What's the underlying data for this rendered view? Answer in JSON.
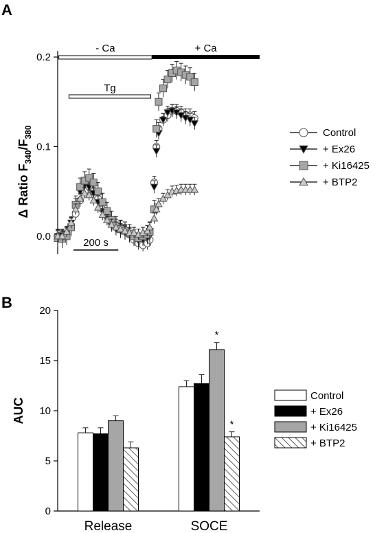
{
  "panels": {
    "a": "A",
    "b": "B"
  },
  "chart_data": [
    {
      "type": "scatter",
      "panel": "A",
      "ylabel_parts": {
        "delta": "Δ",
        "main": " Ratio F",
        "sub1": "340",
        "slash": "/F",
        "sub2": "380"
      },
      "ylim": [
        -0.02,
        0.21
      ],
      "xlim": [
        0,
        900
      ],
      "yticks": [
        {
          "v": 0.0,
          "label": "0.0"
        },
        {
          "v": 0.1,
          "label": "0.1"
        },
        {
          "v": 0.2,
          "label": "0.2"
        }
      ],
      "scale_bar": {
        "label": "200 s",
        "start": 70,
        "end": 270
      },
      "annotations": {
        "minus_ca": {
          "label": "- Ca",
          "start": 5,
          "end": 420
        },
        "plus_ca": {
          "label": "+ Ca",
          "start": 420,
          "end": 900
        },
        "tg": {
          "label": "Tg",
          "start": 50,
          "end": 415
        }
      },
      "series": [
        {
          "name": "Control",
          "marker": "circle",
          "fill": "#ffffff",
          "points": [
            [
              0,
              0
            ],
            [
              20,
              -0.002
            ],
            [
              40,
              0.002
            ],
            [
              60,
              0.01
            ],
            [
              80,
              0.025
            ],
            [
              100,
              0.04
            ],
            [
              120,
              0.05
            ],
            [
              140,
              0.055
            ],
            [
              160,
              0.05
            ],
            [
              180,
              0.042
            ],
            [
              200,
              0.03
            ],
            [
              220,
              0.022
            ],
            [
              240,
              0.015
            ],
            [
              260,
              0.012
            ],
            [
              280,
              0.01
            ],
            [
              300,
              0.006
            ],
            [
              320,
              0.002
            ],
            [
              340,
              -0.004
            ],
            [
              360,
              -0.008
            ],
            [
              380,
              -0.01
            ],
            [
              400,
              -0.008
            ],
            [
              410,
              -0.004
            ],
            [
              430,
              0.06
            ],
            [
              440,
              0.1
            ],
            [
              450,
              0.12
            ],
            [
              470,
              0.13
            ],
            [
              490,
              0.135
            ],
            [
              510,
              0.14
            ],
            [
              530,
              0.14
            ],
            [
              550,
              0.138
            ],
            [
              570,
              0.135
            ],
            [
              590,
              0.135
            ],
            [
              610,
              0.132
            ]
          ],
          "err": 0.007
        },
        {
          "name": "+ Ex26",
          "marker": "triangle-down",
          "fill": "#000000",
          "points": [
            [
              0,
              0
            ],
            [
              20,
              0.001
            ],
            [
              40,
              0.003
            ],
            [
              60,
              0.015
            ],
            [
              80,
              0.035
            ],
            [
              100,
              0.05
            ],
            [
              120,
              0.057
            ],
            [
              140,
              0.055
            ],
            [
              160,
              0.048
            ],
            [
              180,
              0.038
            ],
            [
              200,
              0.028
            ],
            [
              220,
              0.02
            ],
            [
              240,
              0.012
            ],
            [
              260,
              0.008
            ],
            [
              280,
              0.006
            ],
            [
              300,
              0.004
            ],
            [
              320,
              0.002
            ],
            [
              340,
              0
            ],
            [
              360,
              -0.005
            ],
            [
              380,
              -0.004
            ],
            [
              400,
              -0.002
            ],
            [
              410,
              0
            ],
            [
              430,
              0.055
            ],
            [
              440,
              0.095
            ],
            [
              450,
              0.115
            ],
            [
              470,
              0.13
            ],
            [
              490,
              0.138
            ],
            [
              510,
              0.14
            ],
            [
              530,
              0.138
            ],
            [
              550,
              0.135
            ],
            [
              570,
              0.132
            ],
            [
              590,
              0.13
            ],
            [
              610,
              0.126
            ]
          ],
          "err": 0.007
        },
        {
          "name": "+ Ki16425",
          "marker": "square",
          "fill": "#a6a6a6",
          "points": [
            [
              0,
              -0.002
            ],
            [
              20,
              -0.003
            ],
            [
              40,
              0
            ],
            [
              60,
              0.01
            ],
            [
              80,
              0.035
            ],
            [
              100,
              0.055
            ],
            [
              120,
              0.062
            ],
            [
              140,
              0.065
            ],
            [
              160,
              0.06
            ],
            [
              180,
              0.05
            ],
            [
              200,
              0.038
            ],
            [
              220,
              0.028
            ],
            [
              240,
              0.018
            ],
            [
              260,
              0.012
            ],
            [
              280,
              0.008
            ],
            [
              300,
              0.006
            ],
            [
              320,
              0.003
            ],
            [
              340,
              0
            ],
            [
              360,
              -0.002
            ],
            [
              380,
              0
            ],
            [
              400,
              0.002
            ],
            [
              410,
              0.005
            ],
            [
              430,
              0.03
            ],
            [
              440,
              0.12
            ],
            [
              450,
              0.15
            ],
            [
              470,
              0.165
            ],
            [
              490,
              0.175
            ],
            [
              510,
              0.182
            ],
            [
              530,
              0.185
            ],
            [
              550,
              0.183
            ],
            [
              570,
              0.18
            ],
            [
              590,
              0.178
            ],
            [
              610,
              0.172
            ]
          ],
          "err": 0.01
        },
        {
          "name": "+ BTP2",
          "marker": "triangle-up",
          "fill": "#c8c8c8",
          "points": [
            [
              0,
              0
            ],
            [
              20,
              0
            ],
            [
              40,
              0.005
            ],
            [
              60,
              0.015
            ],
            [
              80,
              0.03
            ],
            [
              100,
              0.042
            ],
            [
              120,
              0.048
            ],
            [
              140,
              0.046
            ],
            [
              160,
              0.04
            ],
            [
              180,
              0.032
            ],
            [
              200,
              0.024
            ],
            [
              220,
              0.018
            ],
            [
              240,
              0.013
            ],
            [
              260,
              0.01
            ],
            [
              280,
              0.008
            ],
            [
              300,
              0.006
            ],
            [
              320,
              0.004
            ],
            [
              340,
              0.004
            ],
            [
              360,
              0.002
            ],
            [
              380,
              0.004
            ],
            [
              400,
              0.006
            ],
            [
              410,
              0.01
            ],
            [
              430,
              0.02
            ],
            [
              440,
              0.03
            ],
            [
              450,
              0.036
            ],
            [
              470,
              0.042
            ],
            [
              490,
              0.046
            ],
            [
              510,
              0.05
            ],
            [
              530,
              0.051
            ],
            [
              550,
              0.052
            ],
            [
              570,
              0.052
            ],
            [
              590,
              0.052
            ],
            [
              610,
              0.052
            ]
          ],
          "err": 0.006
        }
      ],
      "legend": {
        "placement": "right",
        "entries": [
          "Control",
          "+ Ex26",
          "+ Ki16425",
          "+ BTP2"
        ]
      }
    },
    {
      "type": "bar",
      "panel": "B",
      "ylabel": "AUC",
      "ylim": [
        0,
        20
      ],
      "yticks": [
        {
          "v": 0,
          "label": "0"
        },
        {
          "v": 5,
          "label": "5"
        },
        {
          "v": 10,
          "label": "10"
        },
        {
          "v": 15,
          "label": "15"
        },
        {
          "v": 20,
          "label": "20"
        }
      ],
      "categories": [
        "Release",
        "SOCE"
      ],
      "series": [
        {
          "name": "Control",
          "fill": "#ffffff",
          "hatch": false,
          "values": [
            7.8,
            12.4
          ],
          "errors": [
            0.5,
            0.6
          ],
          "sig": [
            "",
            ""
          ]
        },
        {
          "name": "+ Ex26",
          "fill": "#000000",
          "hatch": false,
          "values": [
            7.7,
            12.7
          ],
          "errors": [
            0.6,
            0.9
          ],
          "sig": [
            "",
            ""
          ]
        },
        {
          "name": "+ Ki16425",
          "fill": "#a6a6a6",
          "hatch": false,
          "values": [
            9.0,
            16.1
          ],
          "errors": [
            0.5,
            0.7
          ],
          "sig": [
            "",
            "*"
          ]
        },
        {
          "name": "+ BTP2",
          "fill": "#ffffff",
          "hatch": true,
          "values": [
            6.3,
            7.4
          ],
          "errors": [
            0.6,
            0.5
          ],
          "sig": [
            "",
            "*"
          ]
        }
      ],
      "legend": {
        "placement": "right",
        "entries": [
          "Control",
          "+ Ex26",
          "+ Ki16425",
          "+ BTP2"
        ]
      }
    }
  ]
}
